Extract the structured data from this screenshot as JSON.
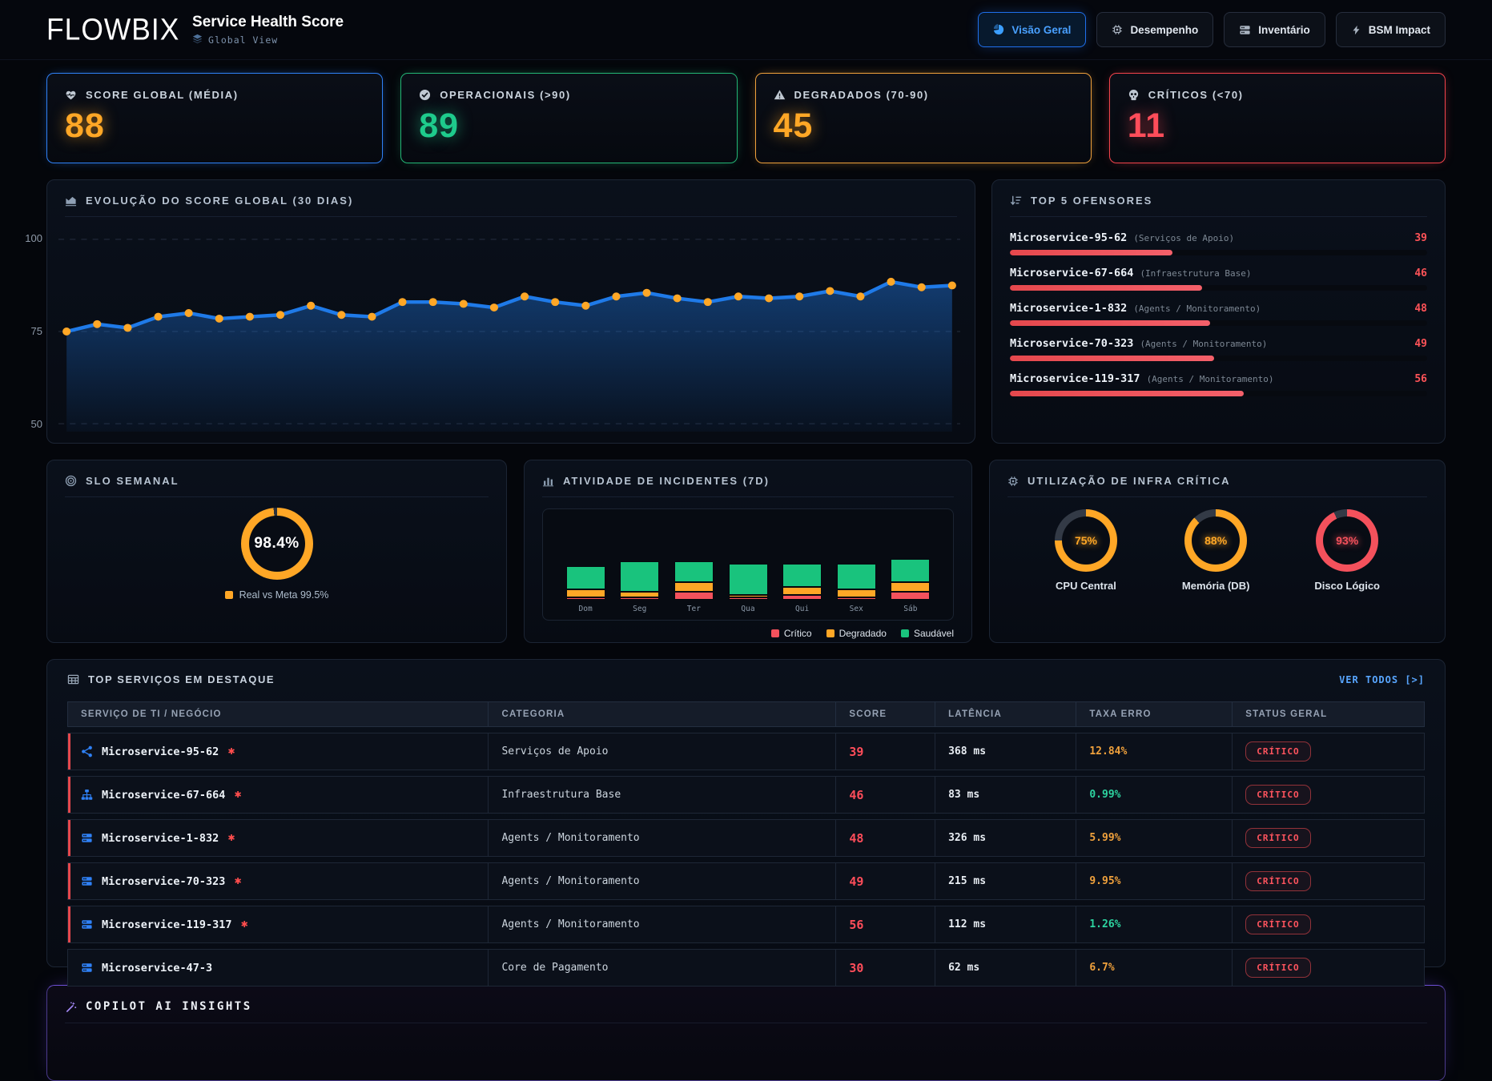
{
  "header": {
    "brand": "FLOWBIX",
    "title": "Service Health Score",
    "subtitle": "Global View",
    "tabs": [
      {
        "label": "Visão Geral",
        "icon": "pie-chart",
        "active": true
      },
      {
        "label": "Desempenho",
        "icon": "chip",
        "active": false
      },
      {
        "label": "Inventário",
        "icon": "server",
        "active": false
      },
      {
        "label": "BSM Impact",
        "icon": "bolt",
        "active": false
      }
    ]
  },
  "kpis": [
    {
      "label": "SCORE GLOBAL (MÉDIA)",
      "value": "88",
      "icon": "heart-pulse",
      "value_color": "#ffa726",
      "border_color": "#2f81f7"
    },
    {
      "label": "OPERACIONAIS (>90)",
      "value": "89",
      "icon": "check-circle",
      "value_color": "#1ecb8c",
      "border_color": "#23b575"
    },
    {
      "label": "DEGRADADOS (70-90)",
      "value": "45",
      "icon": "warning-triangle",
      "value_color": "#ffa726",
      "border_color": "#f0a13c"
    },
    {
      "label": "CRÍTICOS (<70)",
      "value": "11",
      "icon": "skull",
      "value_color": "#ff4d5a",
      "border_color": "#f4434b"
    }
  ],
  "panels": {
    "score": {
      "title": "EVOLUÇÃO DO SCORE GLOBAL (30 DIAS)"
    },
    "offenders": {
      "title": "TOP 5 OFENSORES"
    },
    "slo": {
      "title": "SLO SEMANAL"
    },
    "incidents": {
      "title": "ATIVIDADE DE INCIDENTES (7D)"
    },
    "infra": {
      "title": "UTILIZAÇÃO DE INFRA CRÍTICA"
    }
  },
  "offenders": {
    "items": [
      {
        "name": "Microservice-95-62",
        "category": "(Serviços de Apoio)",
        "value": 39
      },
      {
        "name": "Microservice-67-664",
        "category": "(Infraestrutura Base)",
        "value": 46
      },
      {
        "name": "Microservice-1-832",
        "category": "(Agents / Monitoramento)",
        "value": 48
      },
      {
        "name": "Microservice-70-323",
        "category": "(Agents / Monitoramento)",
        "value": 49
      },
      {
        "name": "Microservice-119-317",
        "category": "(Agents / Monitoramento)",
        "value": 56
      }
    ]
  },
  "chart_data": [
    {
      "type": "line",
      "title": "EVOLUÇÃO DO SCORE GLOBAL (30 DIAS)",
      "x": [
        1,
        2,
        3,
        4,
        5,
        6,
        7,
        8,
        9,
        10,
        11,
        12,
        13,
        14,
        15,
        16,
        17,
        18,
        19,
        20,
        21,
        22,
        23,
        24,
        25,
        26,
        27,
        28,
        29,
        30
      ],
      "values": [
        75,
        77,
        76,
        79,
        80,
        78.5,
        79,
        79.5,
        82,
        79.5,
        79,
        83,
        83,
        82.5,
        81.5,
        84.5,
        83,
        82,
        84.5,
        85.5,
        84,
        83,
        84.5,
        84,
        84.5,
        86,
        84.5,
        88.5,
        87,
        87.5
      ],
      "ylim": [
        50,
        100
      ],
      "yticks": [
        "100",
        "75",
        "50"
      ],
      "grid": "dashed",
      "line_color": "#1f7ae8",
      "point_color": "#ffa726"
    },
    {
      "type": "bar-stacked",
      "title": "ATIVIDADE DE INCIDENTES (7D)",
      "categories": [
        "Dom",
        "Seg",
        "Ter",
        "Qua",
        "Qui",
        "Sex",
        "Sáb"
      ],
      "series": [
        {
          "name": "Crítico",
          "color": "#f4515c",
          "values": [
            1,
            1,
            3,
            1,
            2,
            1,
            3
          ]
        },
        {
          "name": "Degradado",
          "color": "#ffa726",
          "values": [
            3,
            2,
            4,
            1,
            3,
            3,
            4
          ]
        },
        {
          "name": "Saudável",
          "color": "#19c37d",
          "values": [
            9,
            12,
            8,
            12,
            9,
            10,
            9
          ]
        }
      ],
      "legend_position": "bottom-right"
    },
    {
      "type": "gauge",
      "title": "SLO SEMANAL",
      "value": 98.4,
      "display": "98.4%",
      "label": "Real vs Meta 99.5%",
      "color": "#ffa726"
    },
    {
      "type": "gauge-group",
      "title": "UTILIZAÇÃO DE INFRA CRÍTICA",
      "gauges": [
        {
          "label": "CPU Central",
          "value": 75,
          "display": "75%",
          "color": "#ffa726"
        },
        {
          "label": "Memória (DB)",
          "value": 88,
          "display": "88%",
          "color": "#ffa726"
        },
        {
          "label": "Disco Lógico",
          "value": 93,
          "display": "93%",
          "color": "#f4515c"
        }
      ]
    }
  ],
  "table": {
    "title": "TOP SERVIÇOS EM DESTAQUE",
    "link": "VER TODOS [>]",
    "columns": [
      "SERVIÇO DE TI / NEGÓCIO",
      "CATEGORIA",
      "SCORE",
      "LATÊNCIA",
      "TAXA ERRO",
      "STATUS GERAL"
    ],
    "rows": [
      {
        "icon": "share-nodes",
        "name": "Microservice-95-62",
        "flagged": true,
        "category": "Serviços de Apoio",
        "score": "39",
        "latency": "368 ms",
        "error_rate": "12.84%",
        "error_level": "warn",
        "status": "CRÍTICO"
      },
      {
        "icon": "sitemap",
        "name": "Microservice-67-664",
        "flagged": true,
        "category": "Infraestrutura Base",
        "score": "46",
        "latency": "83 ms",
        "error_rate": "0.99%",
        "error_level": "ok",
        "status": "CRÍTICO"
      },
      {
        "icon": "server",
        "name": "Microservice-1-832",
        "flagged": true,
        "category": "Agents / Monitoramento",
        "score": "48",
        "latency": "326 ms",
        "error_rate": "5.99%",
        "error_level": "warn",
        "status": "CRÍTICO"
      },
      {
        "icon": "server",
        "name": "Microservice-70-323",
        "flagged": true,
        "category": "Agents / Monitoramento",
        "score": "49",
        "latency": "215 ms",
        "error_rate": "9.95%",
        "error_level": "warn",
        "status": "CRÍTICO"
      },
      {
        "icon": "server",
        "name": "Microservice-119-317",
        "flagged": true,
        "category": "Agents / Monitoramento",
        "score": "56",
        "latency": "112 ms",
        "error_rate": "1.26%",
        "error_level": "ok",
        "status": "CRÍTICO"
      },
      {
        "icon": "server",
        "name": "Microservice-47-3",
        "flagged": false,
        "category": "Core de Pagamento",
        "score": "30",
        "latency": "62 ms",
        "error_rate": "6.7%",
        "error_level": "warn",
        "status": "CRÍTICO"
      }
    ]
  },
  "copilot": {
    "title": "COPILOT AI INSIGHTS"
  }
}
